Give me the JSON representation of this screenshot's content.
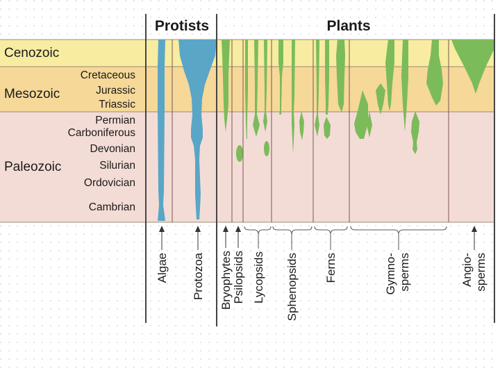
{
  "headers": {
    "protists": "Protists",
    "plants": "Plants"
  },
  "eras": {
    "cenozoic": "Cenozoic",
    "mesozoic": "Mesozoic",
    "paleozoic": "Paleozoic"
  },
  "periods": {
    "cretaceous": "Cretaceous",
    "jurassic": "Jurassic",
    "triassic": "Triassic",
    "permian": "Permian",
    "carboniferous": "Carboniferous",
    "devonian": "Devonian",
    "silurian": "Silurian",
    "ordovician": "Ordovician",
    "cambrian": "Cambrian"
  },
  "groups": {
    "algae": "Algae",
    "protozoa": "Protozoa",
    "bryophytes": "Bryophytes",
    "psilopsids": "Psilopsids",
    "lycopsids": "Lycopsids",
    "sphenopsids": "Sphenopsids",
    "ferns": "Ferns",
    "gymnosperms_1": "Gymno-",
    "gymnosperms_2": "sperms",
    "angiosperms_1": "Angio-",
    "angiosperms_2": "sperms"
  },
  "colors": {
    "cenozoic_band": "#f7eca0",
    "mesozoic_band": "#f6d898",
    "paleozoic_band": "#f4dcd6",
    "protist_blue": "#5aa6c6",
    "plant_green": "#7cbb5a",
    "divider": "#7a5555"
  }
}
